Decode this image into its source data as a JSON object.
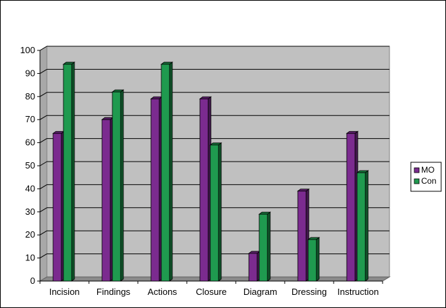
{
  "chart_data": {
    "type": "bar",
    "categories": [
      "Incision",
      "Findings",
      "Actions",
      "Closure",
      "Diagram",
      "Dressing",
      "Instruction"
    ],
    "series": [
      {
        "name": "MO",
        "color": "#7b2b8f",
        "values": [
          64,
          70,
          79,
          79,
          12,
          39,
          64
        ]
      },
      {
        "name": "Con",
        "color": "#1f9a4f",
        "values": [
          94,
          82,
          94,
          59,
          29,
          18,
          47
        ]
      }
    ],
    "ylim": [
      0,
      100
    ],
    "yticks": [
      0,
      10,
      20,
      30,
      40,
      50,
      60,
      70,
      80,
      90,
      100
    ],
    "grid": true,
    "legend": "right",
    "plot_background": "#c0c0c0",
    "floor_color": "#8a8a8a"
  }
}
